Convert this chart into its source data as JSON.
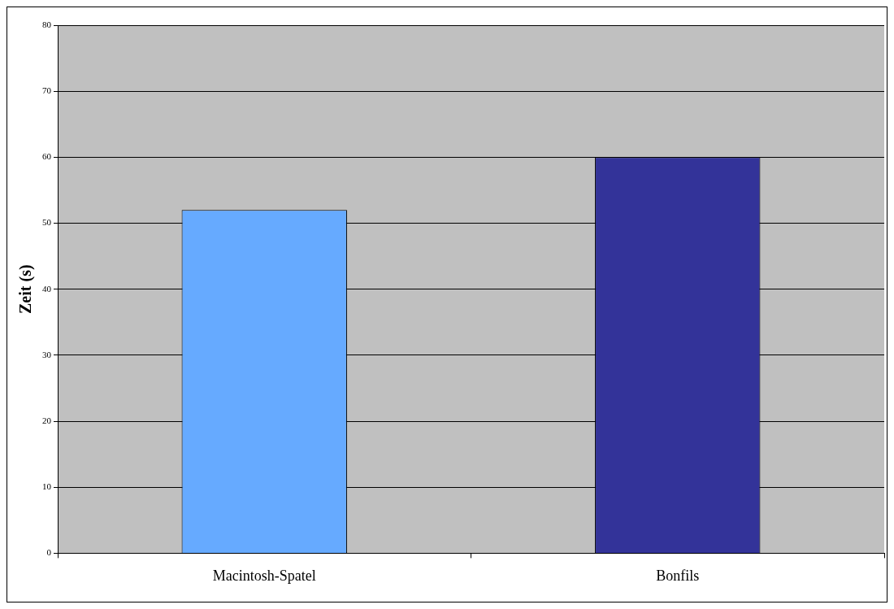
{
  "chart_data": {
    "type": "bar",
    "ylabel": "Zeit (s)",
    "categories": [
      "Macintosh-Spatel",
      "Bonfils"
    ],
    "values": [
      52,
      60
    ],
    "colors": [
      "#66aaff",
      "#333399"
    ],
    "ylim": [
      0,
      80
    ],
    "yticks": [
      0,
      10,
      20,
      30,
      40,
      50,
      60,
      70,
      80
    ],
    "grid": "y"
  }
}
